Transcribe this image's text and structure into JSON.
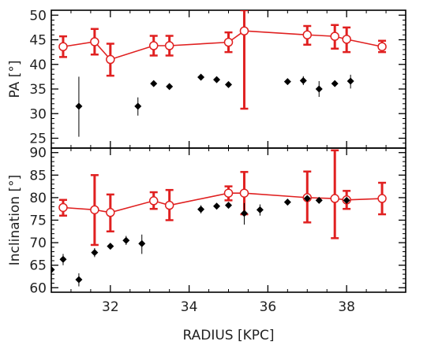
{
  "chart_data": [
    {
      "type": "scatter",
      "panel": "top",
      "ylabel": "PA [°]",
      "xlim": [
        30.5,
        39.5
      ],
      "ylim": [
        23,
        51
      ],
      "yticks": [
        25,
        30,
        35,
        40,
        45,
        50
      ],
      "grid": false,
      "legend": "none",
      "series": [
        {
          "style": "red line with open circles and error bars",
          "color": "#e02020",
          "points": [
            {
              "x": 30.8,
              "y": 43.6,
              "lo": 41.5,
              "hi": 45.7
            },
            {
              "x": 31.6,
              "y": 44.6,
              "lo": 42.0,
              "hi": 47.2
            },
            {
              "x": 32.0,
              "y": 41.0,
              "lo": 37.7,
              "hi": 44.2
            },
            {
              "x": 33.1,
              "y": 43.8,
              "lo": 41.8,
              "hi": 45.8
            },
            {
              "x": 33.5,
              "y": 43.8,
              "lo": 41.8,
              "hi": 45.8
            },
            {
              "x": 35.0,
              "y": 44.5,
              "lo": 42.5,
              "hi": 46.5
            },
            {
              "x": 35.4,
              "y": 46.8,
              "lo": 31.0,
              "hi": 51.0
            },
            {
              "x": 37.0,
              "y": 46.0,
              "lo": 44.0,
              "hi": 47.8
            },
            {
              "x": 37.7,
              "y": 45.7,
              "lo": 43.2,
              "hi": 48.0
            },
            {
              "x": 38.0,
              "y": 45.1,
              "lo": 42.5,
              "hi": 47.5
            },
            {
              "x": 38.9,
              "y": 43.6,
              "lo": 42.5,
              "hi": 44.8
            }
          ]
        },
        {
          "style": "black filled diamonds",
          "color": "#000000",
          "points": [
            {
              "x": 31.2,
              "y": 31.5,
              "lo": 25.3,
              "hi": 37.5
            },
            {
              "x": 32.7,
              "y": 31.5,
              "lo": 29.6,
              "hi": 33.3
            },
            {
              "x": 33.1,
              "y": 36.1
            },
            {
              "x": 33.5,
              "y": 35.5
            },
            {
              "x": 34.3,
              "y": 37.4
            },
            {
              "x": 34.7,
              "y": 36.9
            },
            {
              "x": 35.0,
              "y": 35.9
            },
            {
              "x": 36.5,
              "y": 36.5
            },
            {
              "x": 36.9,
              "y": 36.7,
              "lo": 35.8,
              "hi": 37.6
            },
            {
              "x": 37.3,
              "y": 35.0,
              "lo": 33.4,
              "hi": 36.6
            },
            {
              "x": 37.7,
              "y": 36.1
            },
            {
              "x": 38.1,
              "y": 36.6,
              "lo": 35.1,
              "hi": 37.9
            }
          ]
        }
      ]
    },
    {
      "type": "scatter",
      "panel": "bottom",
      "ylabel": "Inclination [°]",
      "xlabel": "RADIUS [KPC]",
      "xlim": [
        30.5,
        39.5
      ],
      "ylim": [
        59,
        91
      ],
      "yticks": [
        60,
        65,
        70,
        75,
        80,
        85,
        90
      ],
      "xticks": [
        32,
        34,
        36,
        38
      ],
      "grid": false,
      "legend": "none",
      "series": [
        {
          "style": "red line with open circles and error bars",
          "color": "#e02020",
          "points": [
            {
              "x": 30.8,
              "y": 77.8,
              "lo": 76.0,
              "hi": 79.5
            },
            {
              "x": 31.6,
              "y": 77.3,
              "lo": 69.5,
              "hi": 85.0
            },
            {
              "x": 32.0,
              "y": 76.7,
              "lo": 72.5,
              "hi": 80.7
            },
            {
              "x": 33.1,
              "y": 79.3,
              "lo": 77.5,
              "hi": 81.2
            },
            {
              "x": 33.5,
              "y": 78.3,
              "lo": 75.0,
              "hi": 81.7
            },
            {
              "x": 35.0,
              "y": 81.0,
              "lo": 79.4,
              "hi": 82.5
            },
            {
              "x": 35.4,
              "y": 81.0,
              "lo": 76.3,
              "hi": 85.7
            },
            {
              "x": 37.0,
              "y": 80.0,
              "lo": 74.5,
              "hi": 85.8
            },
            {
              "x": 37.7,
              "y": 79.8,
              "lo": 71.0,
              "hi": 90.5
            },
            {
              "x": 38.0,
              "y": 79.5,
              "lo": 77.5,
              "hi": 81.5
            },
            {
              "x": 38.9,
              "y": 79.8,
              "lo": 76.3,
              "hi": 83.3
            }
          ]
        },
        {
          "style": "black filled diamonds",
          "color": "#000000",
          "points": [
            {
              "x": 30.5,
              "y": 64.0
            },
            {
              "x": 30.8,
              "y": 66.3,
              "lo": 65.0,
              "hi": 67.5
            },
            {
              "x": 31.2,
              "y": 61.8,
              "lo": 60.3,
              "hi": 63.2
            },
            {
              "x": 31.6,
              "y": 67.8,
              "lo": 66.8,
              "hi": 68.8
            },
            {
              "x": 32.0,
              "y": 69.2
            },
            {
              "x": 32.4,
              "y": 70.5,
              "lo": 69.5,
              "hi": 71.5
            },
            {
              "x": 32.8,
              "y": 69.8,
              "lo": 67.5,
              "hi": 71.8
            },
            {
              "x": 34.3,
              "y": 77.4,
              "lo": 76.5,
              "hi": 78.3
            },
            {
              "x": 34.7,
              "y": 78.1
            },
            {
              "x": 35.0,
              "y": 78.3
            },
            {
              "x": 35.4,
              "y": 76.5,
              "lo": 74.0,
              "hi": 78.8
            },
            {
              "x": 35.8,
              "y": 77.3,
              "lo": 76.0,
              "hi": 78.5
            },
            {
              "x": 36.5,
              "y": 79.0
            },
            {
              "x": 37.0,
              "y": 79.8
            },
            {
              "x": 37.3,
              "y": 79.4
            },
            {
              "x": 38.0,
              "y": 79.4
            }
          ]
        }
      ]
    }
  ]
}
